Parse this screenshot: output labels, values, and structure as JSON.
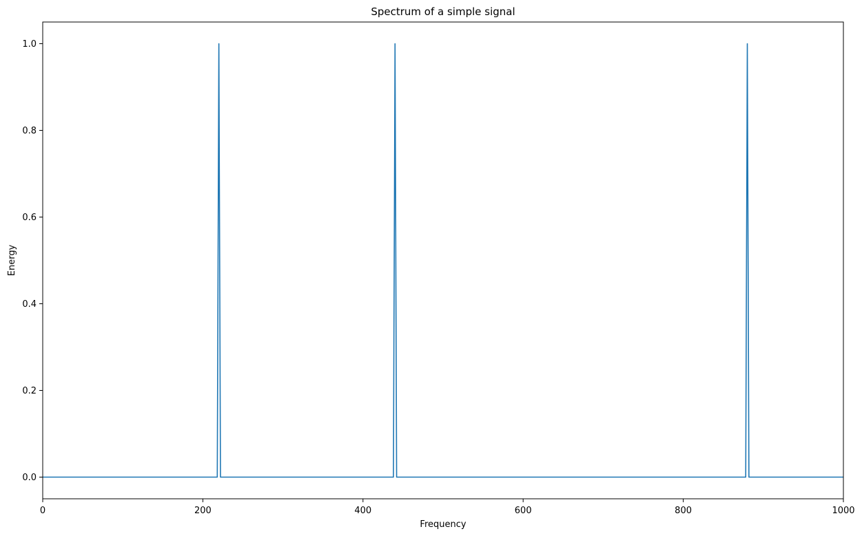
{
  "chart_data": {
    "type": "line",
    "title": "Spectrum of a simple signal",
    "xlabel": "Frequency",
    "ylabel": "Energy",
    "xlim": [
      0,
      1000
    ],
    "ylim": [
      -0.05,
      1.05
    ],
    "xticks": [
      0,
      200,
      400,
      600,
      800,
      1000
    ],
    "xtick_labels": [
      "0",
      "200",
      "400",
      "600",
      "800",
      "1000"
    ],
    "yticks": [
      0.0,
      0.2,
      0.4,
      0.6,
      0.8,
      1.0
    ],
    "ytick_labels": [
      "0.0",
      "0.2",
      "0.4",
      "0.6",
      "0.8",
      "1.0"
    ],
    "grid": false,
    "series": [
      {
        "color": "#1f77b4",
        "x": [
          0,
          218,
          220,
          222,
          438,
          440,
          442,
          878,
          880,
          882,
          1000
        ],
        "y": [
          0,
          0,
          1.0,
          0,
          0,
          1.0,
          0,
          0,
          1.0,
          0,
          0
        ]
      }
    ]
  }
}
